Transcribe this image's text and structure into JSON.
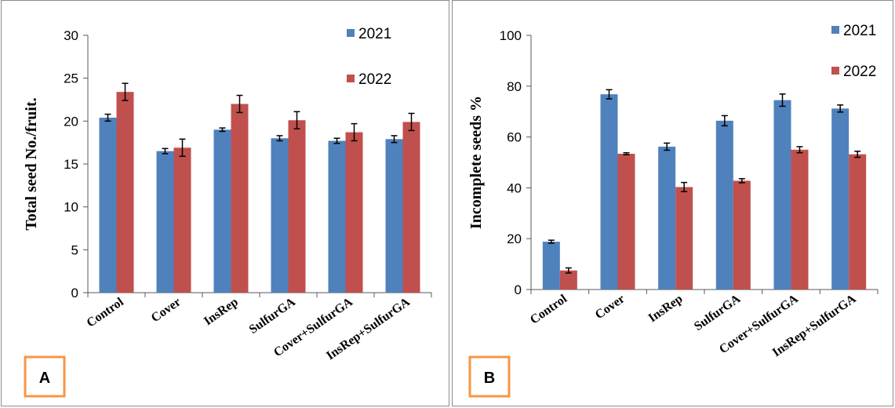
{
  "colors": {
    "s2021": "#4f81bd",
    "s2022": "#c0504d",
    "badge": "#f79646",
    "axis": "#595959"
  },
  "chart_data": [
    {
      "panel_label": "A",
      "type": "bar",
      "ylabel": "Total seed No./fruit.",
      "ylim": [
        0,
        30
      ],
      "yticks": [
        "0",
        "5",
        "10",
        "15",
        "20",
        "25",
        "30"
      ],
      "categories": [
        "Control",
        "Cover",
        "InsRep",
        "SulfurGA",
        "Cover+SulfurGA",
        "InsRep+SulfurGA"
      ],
      "series": [
        {
          "name": "2021",
          "values": [
            20.4,
            16.5,
            19.0,
            18.0,
            17.7,
            17.9
          ],
          "errors": [
            0.4,
            0.3,
            0.2,
            0.3,
            0.3,
            0.4
          ]
        },
        {
          "name": "2022",
          "values": [
            23.4,
            16.9,
            22.0,
            20.1,
            18.7,
            19.9
          ],
          "errors": [
            1.0,
            1.0,
            1.0,
            1.0,
            1.0,
            1.0
          ]
        }
      ],
      "legend": "top-right",
      "grid": false
    },
    {
      "panel_label": "B",
      "type": "bar",
      "ylabel": "Incomplete seeds %",
      "ylim": [
        0,
        100
      ],
      "yticks": [
        "0",
        "20",
        "40",
        "60",
        "80",
        "100"
      ],
      "categories": [
        "Control",
        "Cover",
        "InsRep",
        "SulfurGA",
        "Cover+SulfurGA",
        "InsRep+SulfurGA"
      ],
      "series": [
        {
          "name": "2021",
          "values": [
            18.8,
            76.8,
            56.2,
            66.4,
            74.5,
            71.2
          ],
          "errors": [
            0.6,
            1.8,
            1.4,
            2.0,
            2.4,
            1.4
          ]
        },
        {
          "name": "2022",
          "values": [
            7.5,
            53.4,
            40.3,
            42.8,
            55.0,
            53.2
          ],
          "errors": [
            1.0,
            0.4,
            1.8,
            0.8,
            1.2,
            1.2
          ]
        }
      ],
      "legend": "top-right",
      "grid": false
    }
  ]
}
